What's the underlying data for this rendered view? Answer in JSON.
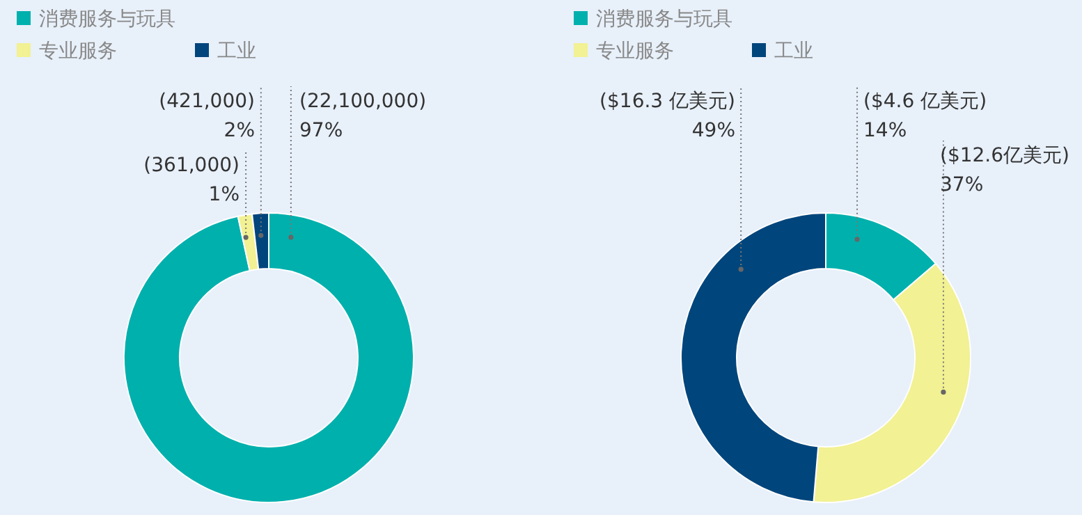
{
  "chart_data": [
    {
      "type": "donut",
      "categories": [
        "消费服务与玩具",
        "专业服务",
        "工业"
      ],
      "values": [
        22100000,
        361000,
        421000
      ],
      "colors": [
        "#00b0ad",
        "#f2f193",
        "#00457c"
      ],
      "value_labels": [
        "(22,100,000)\n97%",
        "(361,000)\n1%",
        "(421,000)\n2%"
      ],
      "legend": "top"
    },
    {
      "type": "donut",
      "categories": [
        "消费服务与玩具",
        "专业服务",
        "工业"
      ],
      "values": [
        4.6,
        12.6,
        16.3
      ],
      "colors": [
        "#00b0ad",
        "#f2f193",
        "#00457c"
      ],
      "value_labels": [
        "($4.6 亿美元)\n14%",
        "($12.6亿美元)\n37%",
        "($16.3 亿美元)\n49%"
      ],
      "legend": "top"
    }
  ]
}
